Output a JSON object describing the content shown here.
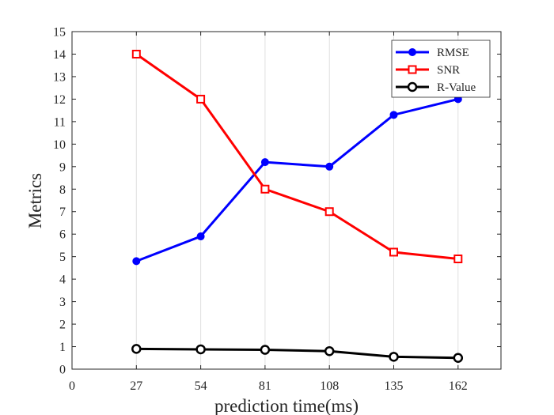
{
  "chart_data": {
    "type": "line",
    "xlabel": "prediction time(ms)",
    "ylabel": "Metrics",
    "xlim": [
      0,
      180
    ],
    "ylim": [
      0,
      15
    ],
    "xticks": [
      0,
      27,
      54,
      81,
      108,
      135,
      162
    ],
    "yticks": [
      0,
      1,
      2,
      3,
      4,
      5,
      6,
      7,
      8,
      9,
      10,
      11,
      12,
      13,
      14,
      15
    ],
    "x": [
      27,
      54,
      81,
      108,
      135,
      162
    ],
    "grid": "vertical",
    "legend_position": "top-right",
    "series": [
      {
        "name": "RMSE",
        "color": "#0000ff",
        "marker": "filled-circle",
        "values": [
          4.8,
          5.9,
          9.2,
          9.0,
          11.3,
          12.0
        ]
      },
      {
        "name": "SNR",
        "color": "#ff0000",
        "marker": "open-square",
        "values": [
          14.0,
          12.0,
          8.0,
          7.0,
          5.2,
          4.9
        ]
      },
      {
        "name": "R-Value",
        "color": "#000000",
        "marker": "open-circle",
        "values": [
          0.9,
          0.88,
          0.86,
          0.8,
          0.55,
          0.5
        ]
      }
    ]
  }
}
